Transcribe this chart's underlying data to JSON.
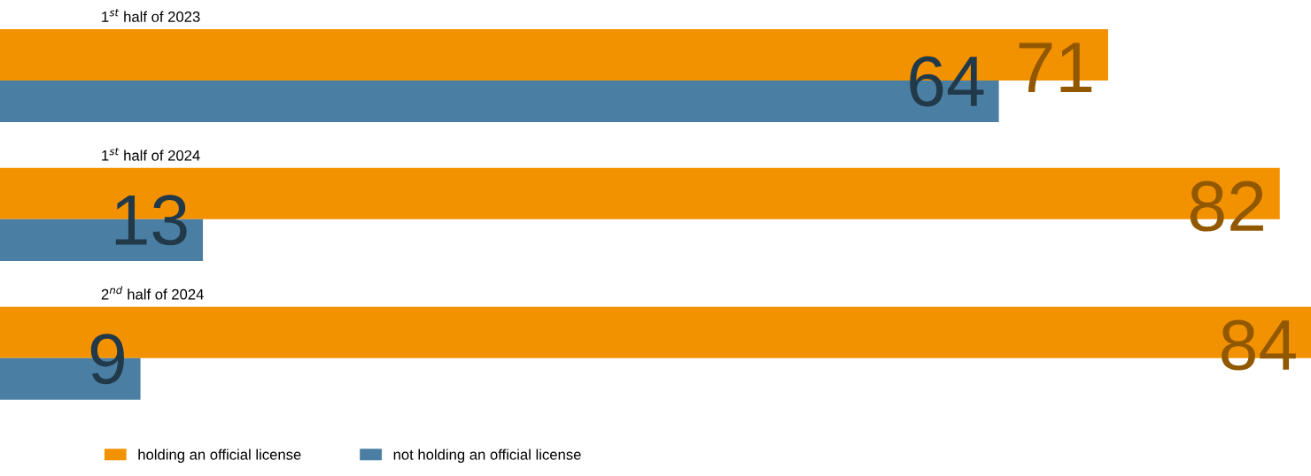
{
  "chart_data": {
    "type": "bar",
    "orientation": "horizontal",
    "categories": [
      "1$^{st}$ half of 2023",
      "1$^{st}$ half of 2024",
      "2$^{nd}$ half of 2024"
    ],
    "series": [
      {
        "name": "holding an official license",
        "color": "#f39200",
        "values": [
          71,
          82,
          84
        ]
      },
      {
        "name": "not holding an official license",
        "color": "#4a7fa3",
        "values": [
          64,
          13,
          9
        ]
      }
    ],
    "data_labels": true,
    "legend": "bottom left"
  }
}
